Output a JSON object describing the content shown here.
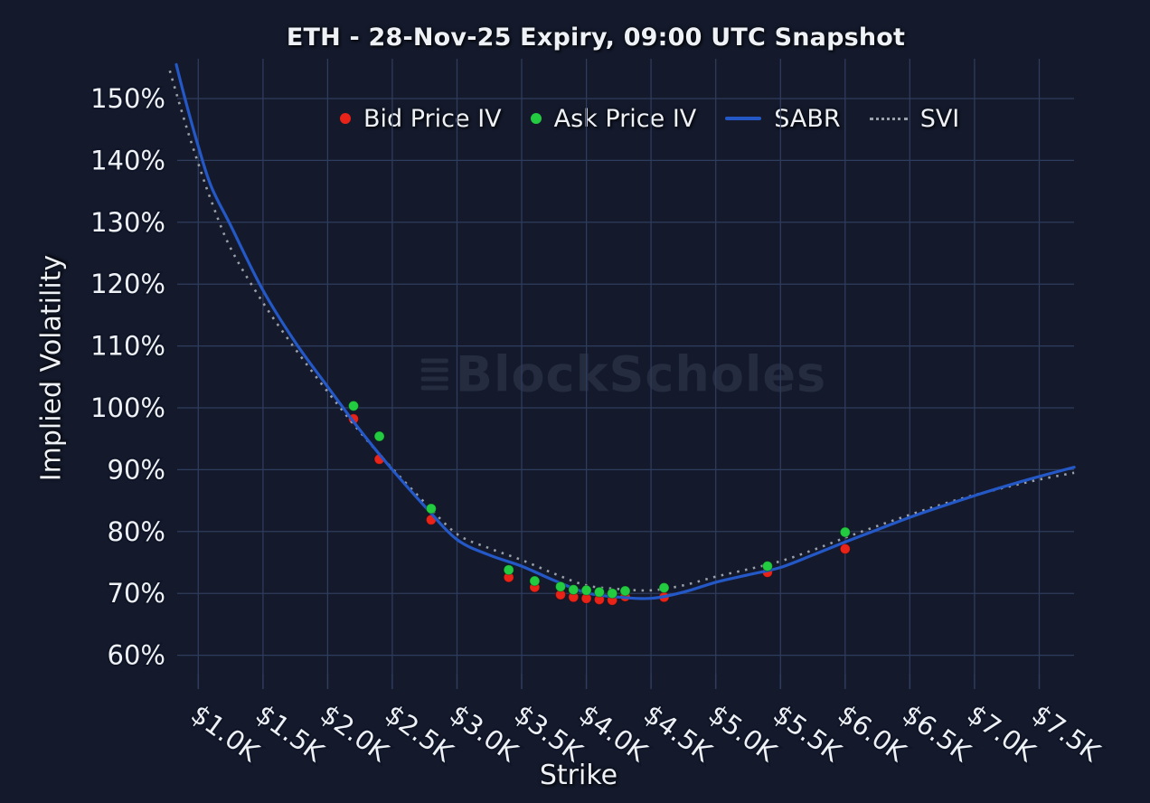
{
  "title": "ETH - 28-Nov-25 Expiry, 09:00 UTC Snapshot",
  "watermark": {
    "text": "BlockScholes"
  },
  "chart_data": {
    "type": "line+scatter",
    "title": "ETH - 28-Nov-25 Expiry, 09:00 UTC Snapshot",
    "xlabel": "Strike",
    "ylabel": "Implied Volatility",
    "grid": true,
    "legend_position": "top-center",
    "x_axis": {
      "ticks": [
        1.0,
        1.5,
        2.0,
        2.5,
        3.0,
        3.5,
        4.0,
        4.5,
        5.0,
        5.5,
        6.0,
        6.5,
        7.0,
        7.5
      ],
      "tick_labels": [
        "$1.0K",
        "$1.5K",
        "$2.0K",
        "$2.5K",
        "$3.0K",
        "$3.5K",
        "$4.0K",
        "$4.5K",
        "$5.0K",
        "$5.5K",
        "$6.0K",
        "$6.5K",
        "$7.0K",
        "$7.5K"
      ],
      "range": [
        0.84,
        7.78
      ]
    },
    "y_axis": {
      "ticks": [
        60,
        70,
        80,
        90,
        100,
        110,
        120,
        130,
        140,
        150
      ],
      "tick_labels": [
        "60%",
        "70%",
        "80%",
        "90%",
        "100%",
        "110%",
        "120%",
        "130%",
        "140%",
        "150%"
      ],
      "range": [
        57.0,
        156.4
      ],
      "unit": "%"
    },
    "legend": {
      "entries": [
        {
          "label": "Bid Price IV",
          "marker": "dot",
          "color": "#ea2318"
        },
        {
          "label": "Ask Price IV",
          "marker": "dot",
          "color": "#22cb40"
        },
        {
          "label": "SABR",
          "marker": "line",
          "color": "#2458c7"
        },
        {
          "label": "SVI",
          "marker": "dotted-line",
          "color": "#9aa0a9"
        }
      ]
    },
    "series": {
      "bid": {
        "name": "Bid Price IV",
        "type": "scatter",
        "color": "#ea2318",
        "points": [
          [
            2.2,
            98.2
          ],
          [
            2.4,
            91.7
          ],
          [
            2.8,
            81.9
          ],
          [
            3.4,
            72.6
          ],
          [
            3.6,
            71.0
          ],
          [
            3.8,
            69.8
          ],
          [
            3.9,
            69.4
          ],
          [
            4.0,
            69.2
          ],
          [
            4.1,
            69.0
          ],
          [
            4.2,
            68.9
          ],
          [
            4.3,
            69.5
          ],
          [
            4.6,
            69.4
          ],
          [
            5.4,
            73.4
          ],
          [
            6.0,
            77.2
          ]
        ]
      },
      "ask": {
        "name": "Ask Price IV",
        "type": "scatter",
        "color": "#22cb40",
        "points": [
          [
            2.2,
            100.3
          ],
          [
            2.4,
            95.4
          ],
          [
            2.8,
            83.7
          ],
          [
            3.4,
            73.8
          ],
          [
            3.6,
            72.0
          ],
          [
            3.8,
            71.1
          ],
          [
            3.9,
            70.6
          ],
          [
            4.0,
            70.5
          ],
          [
            4.1,
            70.2
          ],
          [
            4.2,
            70.0
          ],
          [
            4.3,
            70.4
          ],
          [
            4.6,
            70.9
          ],
          [
            5.4,
            74.4
          ],
          [
            6.0,
            79.9
          ]
        ]
      },
      "sabr": {
        "name": "SABR",
        "type": "line",
        "color": "#2458c7",
        "points": [
          [
            0.83,
            155.5
          ],
          [
            0.9,
            149.8
          ],
          [
            1.0,
            142.3
          ],
          [
            1.1,
            135.8
          ],
          [
            1.25,
            129.5
          ],
          [
            1.5,
            119.0
          ],
          [
            1.75,
            110.6
          ],
          [
            2.0,
            103.4
          ],
          [
            2.25,
            96.4
          ],
          [
            2.5,
            90.0
          ],
          [
            2.75,
            84.1
          ],
          [
            3.0,
            78.7
          ],
          [
            3.25,
            76.2
          ],
          [
            3.5,
            74.4
          ],
          [
            3.75,
            72.1
          ],
          [
            4.0,
            70.1
          ],
          [
            4.25,
            69.4
          ],
          [
            4.5,
            69.2
          ],
          [
            4.75,
            70.2
          ],
          [
            5.0,
            71.8
          ],
          [
            5.25,
            73.0
          ],
          [
            5.5,
            74.2
          ],
          [
            5.75,
            76.2
          ],
          [
            6.0,
            78.3
          ],
          [
            6.25,
            80.3
          ],
          [
            6.5,
            82.3
          ],
          [
            6.75,
            84.1
          ],
          [
            7.0,
            85.8
          ],
          [
            7.25,
            87.4
          ],
          [
            7.5,
            88.9
          ],
          [
            7.77,
            90.4
          ]
        ]
      },
      "svi": {
        "name": "SVI",
        "type": "dotted-line",
        "color": "#9aa0a9",
        "points": [
          [
            0.78,
            154.5
          ],
          [
            0.9,
            146.0
          ],
          [
            1.0,
            139.5
          ],
          [
            1.1,
            133.5
          ],
          [
            1.25,
            125.8
          ],
          [
            1.5,
            117.0
          ],
          [
            1.75,
            109.5
          ],
          [
            2.0,
            102.6
          ],
          [
            2.25,
            96.1
          ],
          [
            2.5,
            90.2
          ],
          [
            2.75,
            84.7
          ],
          [
            3.0,
            79.6
          ],
          [
            3.25,
            77.3
          ],
          [
            3.5,
            75.4
          ],
          [
            3.75,
            73.2
          ],
          [
            4.0,
            71.3
          ],
          [
            4.25,
            70.7
          ],
          [
            4.5,
            70.5
          ],
          [
            4.75,
            71.3
          ],
          [
            5.0,
            72.7
          ],
          [
            5.25,
            73.9
          ],
          [
            5.5,
            75.2
          ],
          [
            5.75,
            77.0
          ],
          [
            6.0,
            79.0
          ],
          [
            6.25,
            80.9
          ],
          [
            6.5,
            82.7
          ],
          [
            6.75,
            84.4
          ],
          [
            7.0,
            85.9
          ],
          [
            7.25,
            87.2
          ],
          [
            7.5,
            88.4
          ],
          [
            7.77,
            89.5
          ]
        ]
      }
    },
    "colors": {
      "background": "#141a2c",
      "grid": "#2e3c5d",
      "text": "#eef1f6",
      "bid": "#ea2318",
      "ask": "#22cb40",
      "sabr": "#2458c7",
      "svi": "#9aa0a9",
      "watermark": "#252c3f"
    }
  }
}
